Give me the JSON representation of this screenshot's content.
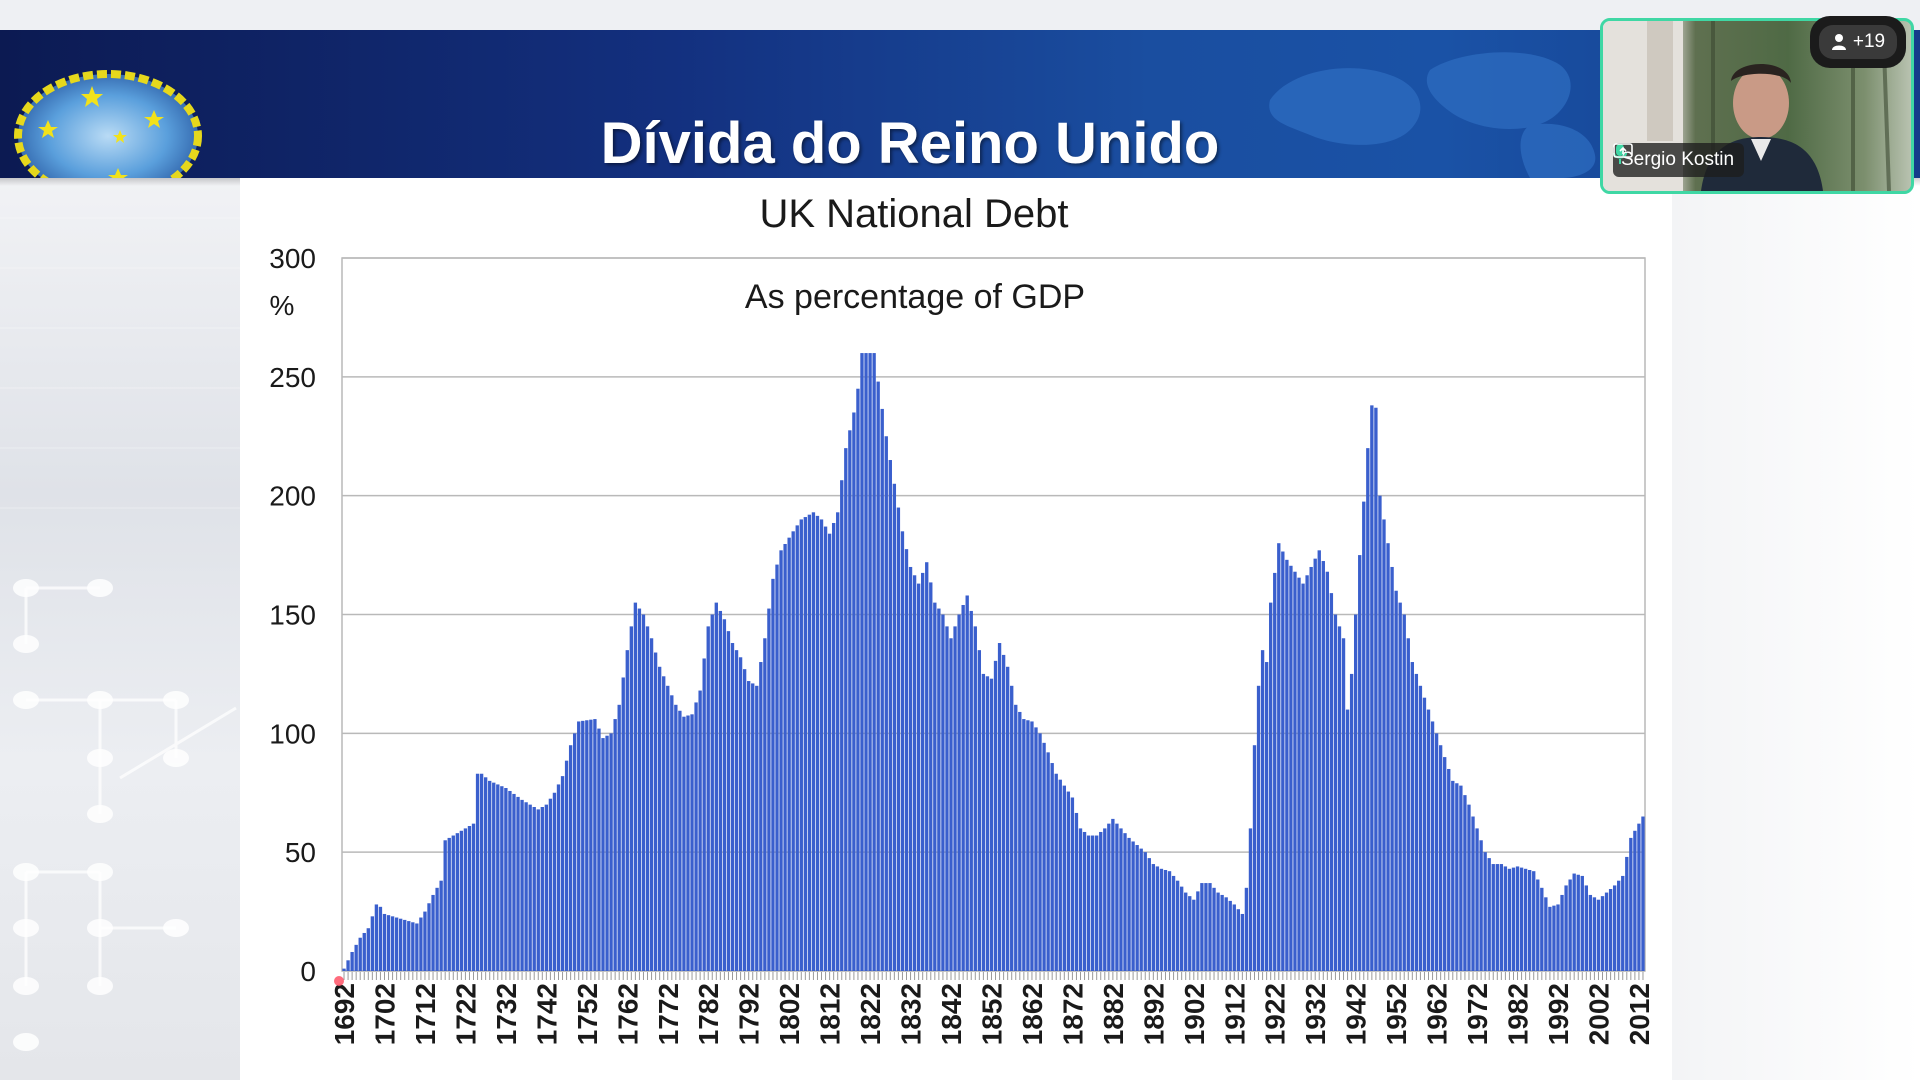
{
  "slide": {
    "title": "Dívida do Reino Unido"
  },
  "chart_data": {
    "type": "bar",
    "title": "UK National Debt",
    "subtitle": "As percentage of GDP",
    "ylabel": "%",
    "xlabel": "",
    "ylim": [
      0,
      300
    ],
    "yticks": [
      0,
      50,
      100,
      150,
      200,
      250,
      300
    ],
    "grid": true,
    "bar_color": "#3a5fcd",
    "x_start": 1692,
    "x_end": 2013,
    "x_tick_labels": [
      "1692",
      "1702",
      "1712",
      "1722",
      "1732",
      "1742",
      "1752",
      "1762",
      "1772",
      "1782",
      "1792",
      "1802",
      "1812",
      "1822",
      "1832",
      "1842",
      "1852",
      "1862",
      "1872",
      "1882",
      "1892",
      "1902",
      "1912",
      "1922",
      "1932",
      "1942",
      "1952",
      "1962",
      "1972",
      "1982",
      "1992",
      "2002",
      "2012"
    ],
    "series": [
      {
        "points": [
          [
            1692,
            1
          ],
          [
            1694,
            8
          ],
          [
            1696,
            14
          ],
          [
            1698,
            18
          ],
          [
            1700,
            28
          ],
          [
            1701,
            27
          ],
          [
            1702,
            24
          ],
          [
            1706,
            22
          ],
          [
            1710,
            20
          ],
          [
            1712,
            25
          ],
          [
            1714,
            32
          ],
          [
            1716,
            38
          ],
          [
            1717,
            55
          ],
          [
            1720,
            58
          ],
          [
            1724,
            62
          ],
          [
            1725,
            83
          ],
          [
            1726,
            83
          ],
          [
            1728,
            80
          ],
          [
            1732,
            77
          ],
          [
            1736,
            72
          ],
          [
            1740,
            68
          ],
          [
            1742,
            70
          ],
          [
            1744,
            75
          ],
          [
            1746,
            82
          ],
          [
            1748,
            95
          ],
          [
            1750,
            105
          ],
          [
            1754,
            106
          ],
          [
            1756,
            98
          ],
          [
            1758,
            100
          ],
          [
            1760,
            112
          ],
          [
            1762,
            135
          ],
          [
            1764,
            155
          ],
          [
            1766,
            150
          ],
          [
            1768,
            140
          ],
          [
            1770,
            128
          ],
          [
            1772,
            120
          ],
          [
            1774,
            112
          ],
          [
            1776,
            107
          ],
          [
            1778,
            108
          ],
          [
            1780,
            118
          ],
          [
            1782,
            145
          ],
          [
            1784,
            155
          ],
          [
            1786,
            148
          ],
          [
            1788,
            138
          ],
          [
            1790,
            132
          ],
          [
            1792,
            122
          ],
          [
            1794,
            120
          ],
          [
            1796,
            140
          ],
          [
            1798,
            165
          ],
          [
            1800,
            177
          ],
          [
            1803,
            185
          ],
          [
            1805,
            190
          ],
          [
            1808,
            193
          ],
          [
            1810,
            190
          ],
          [
            1812,
            184
          ],
          [
            1814,
            193
          ],
          [
            1816,
            220
          ],
          [
            1818,
            235
          ],
          [
            1819,
            245
          ],
          [
            1820,
            260
          ],
          [
            1823,
            260
          ],
          [
            1824,
            248
          ],
          [
            1826,
            225
          ],
          [
            1828,
            205
          ],
          [
            1830,
            185
          ],
          [
            1832,
            170
          ],
          [
            1834,
            163
          ],
          [
            1836,
            172
          ],
          [
            1838,
            155
          ],
          [
            1840,
            150
          ],
          [
            1842,
            140
          ],
          [
            1844,
            150
          ],
          [
            1846,
            158
          ],
          [
            1848,
            145
          ],
          [
            1850,
            125
          ],
          [
            1852,
            123
          ],
          [
            1854,
            138
          ],
          [
            1856,
            128
          ],
          [
            1858,
            112
          ],
          [
            1860,
            106
          ],
          [
            1862,
            105
          ],
          [
            1864,
            100
          ],
          [
            1866,
            92
          ],
          [
            1868,
            83
          ],
          [
            1870,
            78
          ],
          [
            1872,
            73
          ],
          [
            1874,
            60
          ],
          [
            1876,
            57
          ],
          [
            1878,
            57
          ],
          [
            1880,
            60
          ],
          [
            1882,
            64
          ],
          [
            1884,
            60
          ],
          [
            1886,
            56
          ],
          [
            1888,
            53
          ],
          [
            1890,
            50
          ],
          [
            1892,
            45
          ],
          [
            1894,
            43
          ],
          [
            1896,
            42
          ],
          [
            1898,
            38
          ],
          [
            1900,
            33
          ],
          [
            1902,
            30
          ],
          [
            1904,
            37
          ],
          [
            1906,
            37
          ],
          [
            1908,
            33
          ],
          [
            1910,
            31
          ],
          [
            1912,
            28
          ],
          [
            1914,
            24
          ],
          [
            1915,
            35
          ],
          [
            1916,
            60
          ],
          [
            1917,
            95
          ],
          [
            1918,
            120
          ],
          [
            1919,
            135
          ],
          [
            1920,
            130
          ],
          [
            1921,
            155
          ],
          [
            1923,
            180
          ],
          [
            1925,
            173
          ],
          [
            1927,
            168
          ],
          [
            1929,
            163
          ],
          [
            1931,
            170
          ],
          [
            1933,
            177
          ],
          [
            1935,
            168
          ],
          [
            1937,
            150
          ],
          [
            1939,
            140
          ],
          [
            1940,
            110
          ],
          [
            1941,
            125
          ],
          [
            1943,
            175
          ],
          [
            1945,
            220
          ],
          [
            1946,
            238
          ],
          [
            1947,
            237
          ],
          [
            1948,
            200
          ],
          [
            1950,
            180
          ],
          [
            1952,
            160
          ],
          [
            1954,
            150
          ],
          [
            1956,
            130
          ],
          [
            1958,
            120
          ],
          [
            1960,
            110
          ],
          [
            1962,
            100
          ],
          [
            1964,
            90
          ],
          [
            1966,
            80
          ],
          [
            1968,
            78
          ],
          [
            1970,
            70
          ],
          [
            1972,
            60
          ],
          [
            1974,
            50
          ],
          [
            1976,
            45
          ],
          [
            1978,
            45
          ],
          [
            1980,
            43
          ],
          [
            1982,
            44
          ],
          [
            1984,
            43
          ],
          [
            1986,
            42
          ],
          [
            1988,
            35
          ],
          [
            1990,
            27
          ],
          [
            1992,
            28
          ],
          [
            1994,
            36
          ],
          [
            1996,
            41
          ],
          [
            1998,
            40
          ],
          [
            2000,
            32
          ],
          [
            2002,
            30
          ],
          [
            2004,
            33
          ],
          [
            2006,
            36
          ],
          [
            2008,
            40
          ],
          [
            2010,
            56
          ],
          [
            2013,
            65
          ]
        ]
      }
    ]
  },
  "video_tile": {
    "participant_name": "Sergio Kostin",
    "participants_badge": "+19"
  },
  "icons": {
    "mic": "mic-icon",
    "share": "screen-share-icon",
    "person": "person-icon"
  }
}
